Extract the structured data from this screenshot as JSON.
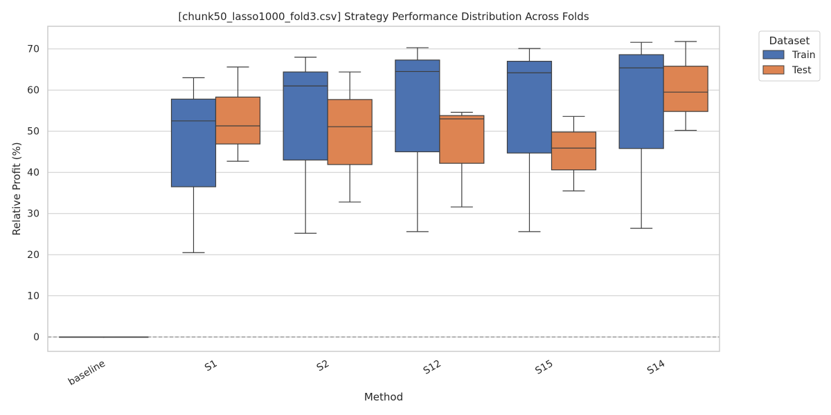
{
  "chart_data": {
    "type": "box",
    "title": "[chunk50_lasso1000_fold3.csv] Strategy Performance Distribution Across Folds",
    "xlabel": "Method",
    "ylabel": "Relative Profit (%)",
    "categories": [
      "baseline",
      "S1",
      "S2",
      "S12",
      "S15",
      "S14"
    ],
    "ylim": [
      -3.5,
      75.5
    ],
    "yticks": [
      0,
      10,
      20,
      30,
      40,
      50,
      60,
      70
    ],
    "grid": "horizontal",
    "reference_line": 0,
    "legend": {
      "title": "Dataset",
      "placement": "outside-top-right"
    },
    "series": [
      {
        "name": "Train",
        "color": "#4c72b0",
        "boxes": [
          {
            "min": 0,
            "q1": 0,
            "median": 0,
            "q3": 0,
            "max": 0
          },
          {
            "min": 20.5,
            "q1": 36.5,
            "median": 52.5,
            "q3": 57.8,
            "max": 63.0
          },
          {
            "min": 25.2,
            "q1": 43.0,
            "median": 61.0,
            "q3": 64.4,
            "max": 68.0
          },
          {
            "min": 25.6,
            "q1": 45.0,
            "median": 64.5,
            "q3": 67.3,
            "max": 70.3
          },
          {
            "min": 25.6,
            "q1": 44.7,
            "median": 64.2,
            "q3": 67.0,
            "max": 70.1
          },
          {
            "min": 26.4,
            "q1": 45.8,
            "median": 65.4,
            "q3": 68.6,
            "max": 71.6
          }
        ]
      },
      {
        "name": "Test",
        "color": "#dd8452",
        "boxes": [
          {
            "min": 0,
            "q1": 0,
            "median": 0,
            "q3": 0,
            "max": 0
          },
          {
            "min": 42.7,
            "q1": 46.9,
            "median": 51.3,
            "q3": 58.3,
            "max": 65.6
          },
          {
            "min": 32.8,
            "q1": 41.9,
            "median": 51.1,
            "q3": 57.7,
            "max": 64.4
          },
          {
            "min": 31.6,
            "q1": 42.2,
            "median": 53.0,
            "q3": 53.8,
            "max": 54.6
          },
          {
            "min": 35.5,
            "q1": 40.6,
            "median": 45.9,
            "q3": 49.8,
            "max": 53.6
          },
          {
            "min": 50.2,
            "q1": 54.8,
            "median": 59.5,
            "q3": 65.8,
            "max": 71.8
          }
        ]
      }
    ]
  }
}
